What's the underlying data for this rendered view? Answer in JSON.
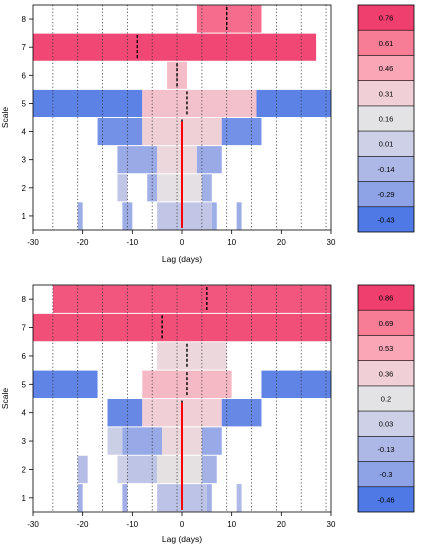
{
  "chart_data": [
    {
      "type": "heatmap",
      "title": "",
      "xlabel": "Lag (days)",
      "ylabel": "Scale",
      "xlim": [
        -30,
        30
      ],
      "x_ticks": [
        -30,
        -20,
        -10,
        0,
        10,
        20,
        30
      ],
      "y_ticks": [
        1,
        2,
        3,
        4,
        5,
        6,
        7,
        8
      ],
      "dotted_vlines_x": [
        -26,
        -21,
        -16,
        -11,
        -6,
        -1,
        4,
        9,
        14,
        19,
        24,
        29
      ],
      "center_line": {
        "x": 0,
        "color": "#ff0000"
      },
      "colorbar": {
        "labels": [
          "0.76",
          "0.61",
          "0.46",
          "0.31",
          "0.16",
          "0.01",
          "-0.14",
          "-0.29",
          "-0.43"
        ],
        "colors": [
          "#ef3f6f",
          "#f77d96",
          "#f9a6b6",
          "#f0cfd6",
          "#e3e3e5",
          "#cdd0e6",
          "#aeb8e6",
          "#8ea3e6",
          "#4f79e5"
        ]
      },
      "rows": [
        {
          "scale": 8,
          "segments": [
            {
              "x0": 3,
              "x1": 16,
              "value": 0.65
            }
          ],
          "dashed_x": [
            9
          ]
        },
        {
          "scale": 7,
          "segments": [
            {
              "x0": -30,
              "x1": 27,
              "value": 0.74
            }
          ],
          "dashed_x": [
            -9
          ]
        },
        {
          "scale": 6,
          "segments": [
            {
              "x0": -3,
              "x1": 1,
              "value": 0.38
            }
          ],
          "dashed_x": [
            -1
          ]
        },
        {
          "scale": 5,
          "segments": [
            {
              "x0": -30,
              "x1": -8,
              "value": -0.4
            },
            {
              "x0": -8,
              "x1": 15,
              "value": 0.36
            },
            {
              "x0": 15,
              "x1": 30,
              "value": -0.4
            }
          ],
          "dashed_x": [
            1
          ]
        },
        {
          "scale": 4,
          "segments": [
            {
              "x0": -17,
              "x1": -8,
              "value": -0.35
            },
            {
              "x0": -8,
              "x1": 8,
              "value": 0.3
            },
            {
              "x0": 8,
              "x1": 16,
              "value": -0.35
            }
          ],
          "dashed_x": [
            0
          ]
        },
        {
          "scale": 3,
          "segments": [
            {
              "x0": -13,
              "x1": -5,
              "value": -0.24
            },
            {
              "x0": -5,
              "x1": 3,
              "value": 0.25
            },
            {
              "x0": 3,
              "x1": 8,
              "value": -0.24
            }
          ],
          "dashed_x": [
            0
          ]
        },
        {
          "scale": 2,
          "segments": [
            {
              "x0": -13,
              "x1": -11,
              "value": -0.05
            },
            {
              "x0": -7,
              "x1": -5,
              "value": -0.2
            },
            {
              "x0": -5,
              "x1": 4,
              "value": 0.18
            },
            {
              "x0": 4,
              "x1": 6,
              "value": -0.2
            }
          ],
          "dashed_x": [
            0
          ]
        },
        {
          "scale": 1,
          "segments": [
            {
              "x0": -21,
              "x1": -20,
              "value": -0.22
            },
            {
              "x0": -12,
              "x1": -10,
              "value": -0.22
            },
            {
              "x0": -5,
              "x1": 6,
              "value": -0.05
            },
            {
              "x0": 6,
              "x1": 7,
              "value": -0.22
            },
            {
              "x0": 11,
              "x1": 12,
              "value": -0.22
            }
          ],
          "dashed_x": [
            0
          ]
        }
      ]
    },
    {
      "type": "heatmap",
      "title": "",
      "xlabel": "Lag (days)",
      "ylabel": "Scale",
      "xlim": [
        -30,
        30
      ],
      "x_ticks": [
        -30,
        -20,
        -10,
        0,
        10,
        20,
        30
      ],
      "y_ticks": [
        1,
        2,
        3,
        4,
        5,
        6,
        7,
        8
      ],
      "dotted_vlines_x": [
        -26,
        -21,
        -16,
        -11,
        -6,
        -1,
        4,
        9,
        14,
        19,
        24,
        29
      ],
      "center_line": {
        "x": 0,
        "color": "#ff0000"
      },
      "colorbar": {
        "labels": [
          "0.86",
          "0.69",
          "0.53",
          "0.36",
          "0.2",
          "0.03",
          "-0.13",
          "-0.3",
          "-0.46"
        ],
        "colors": [
          "#ef3f6f",
          "#f77d96",
          "#f9a6b6",
          "#f0cfd6",
          "#e3e3e5",
          "#cdd0e6",
          "#aeb8e6",
          "#8ea3e6",
          "#4f79e5"
        ]
      },
      "rows": [
        {
          "scale": 8,
          "segments": [
            {
              "x0": -26,
              "x1": 30,
              "value": 0.8
            }
          ],
          "dashed_x": [
            5
          ]
        },
        {
          "scale": 7,
          "segments": [
            {
              "x0": -30,
              "x1": 30,
              "value": 0.82
            }
          ],
          "dashed_x": [
            -4
          ]
        },
        {
          "scale": 6,
          "segments": [
            {
              "x0": -5,
              "x1": 9,
              "value": 0.3
            }
          ],
          "dashed_x": [
            1
          ]
        },
        {
          "scale": 5,
          "segments": [
            {
              "x0": -30,
              "x1": -17,
              "value": -0.42
            },
            {
              "x0": -8,
              "x1": 10,
              "value": 0.45
            },
            {
              "x0": 16,
              "x1": 30,
              "value": -0.42
            }
          ],
          "dashed_x": [
            1
          ]
        },
        {
          "scale": 4,
          "segments": [
            {
              "x0": -15,
              "x1": -8,
              "value": -0.4
            },
            {
              "x0": -8,
              "x1": 8,
              "value": 0.36
            },
            {
              "x0": 8,
              "x1": 16,
              "value": -0.4
            }
          ],
          "dashed_x": [
            0
          ]
        },
        {
          "scale": 3,
          "segments": [
            {
              "x0": -15,
              "x1": -12,
              "value": 0.02
            },
            {
              "x0": -12,
              "x1": -4,
              "value": -0.25
            },
            {
              "x0": -4,
              "x1": 4,
              "value": 0.3
            },
            {
              "x0": 4,
              "x1": 8,
              "value": -0.25
            }
          ],
          "dashed_x": [
            0
          ]
        },
        {
          "scale": 2,
          "segments": [
            {
              "x0": -21,
              "x1": -19,
              "value": -0.1
            },
            {
              "x0": -13,
              "x1": -11,
              "value": 0.03
            },
            {
              "x0": -11,
              "x1": -5,
              "value": -0.05
            },
            {
              "x0": -5,
              "x1": 4,
              "value": 0.22
            },
            {
              "x0": 4,
              "x1": 7,
              "value": -0.18
            }
          ],
          "dashed_x": [
            0
          ]
        },
        {
          "scale": 1,
          "segments": [
            {
              "x0": -21,
              "x1": -20,
              "value": -0.2
            },
            {
              "x0": -12,
              "x1": -11,
              "value": -0.2
            },
            {
              "x0": -5,
              "x1": 5,
              "value": -0.06
            },
            {
              "x0": 5,
              "x1": 6,
              "value": -0.2
            },
            {
              "x0": 11,
              "x1": 12,
              "value": -0.12
            }
          ],
          "dashed_x": [
            0
          ]
        }
      ]
    }
  ]
}
